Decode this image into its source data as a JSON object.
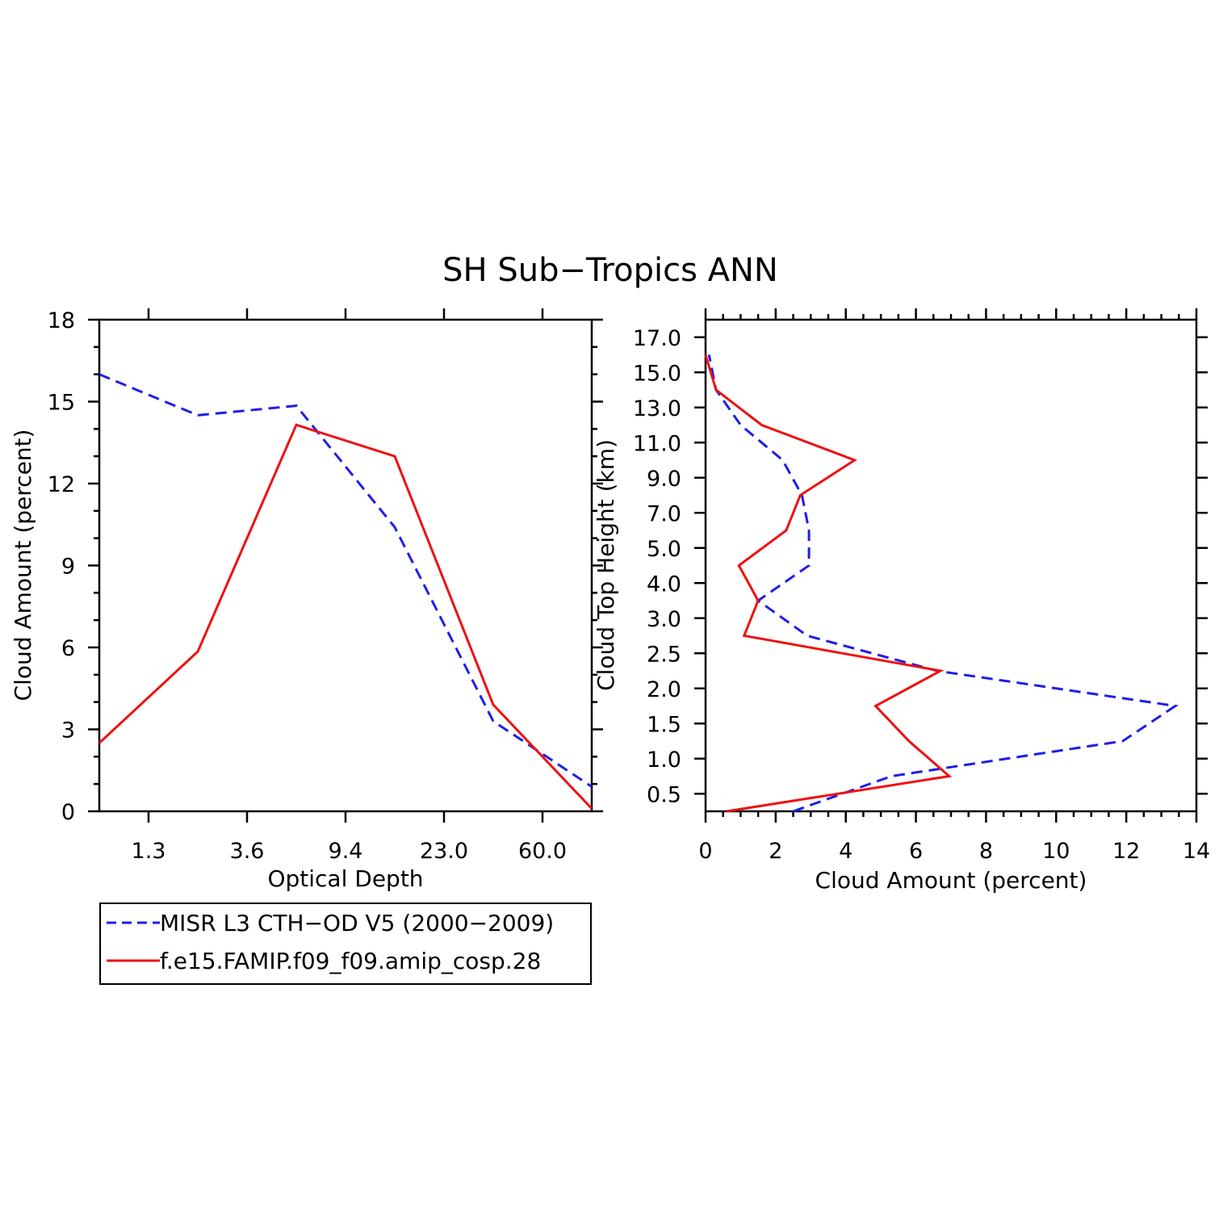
{
  "figure": {
    "title": "SH Sub−Tropics ANN"
  },
  "colors": {
    "misr": "#1f1fe6",
    "model": "#ee1111"
  },
  "legend": {
    "entries": [
      {
        "label": "MISR L3 CTH−OD V5 (2000−2009)",
        "color": "#1f1fe6",
        "style": "dashed"
      },
      {
        "label": "f.e15.FAMIP.f09_f09.amip_cosp.28",
        "color": "#ee1111",
        "style": "solid"
      }
    ]
  },
  "chart_data": [
    {
      "type": "line",
      "xlabel": "Optical Depth",
      "ylabel": "Cloud Amount (percent)",
      "xtick_labels": [
        "1.3",
        "3.6",
        "9.4",
        "23.0",
        "60.0"
      ],
      "xtick_positions": [
        0.5,
        1.5,
        2.5,
        3.5,
        4.5
      ],
      "x": [
        0,
        1,
        2,
        3,
        4,
        5
      ],
      "xlim": [
        0,
        5
      ],
      "ylim": [
        0,
        18
      ],
      "yticks": [
        0,
        3,
        6,
        9,
        12,
        15,
        18
      ],
      "series": [
        {
          "name": "MISR L3 CTH−OD V5 (2000−2009)",
          "style": "dashed",
          "values": [
            16.0,
            14.5,
            14.85,
            10.4,
            3.3,
            0.9
          ]
        },
        {
          "name": "f.e15.FAMIP.f09_f09.amip_cosp.28",
          "style": "solid",
          "values": [
            2.5,
            5.85,
            14.15,
            13.0,
            3.9,
            0.1
          ]
        }
      ]
    },
    {
      "type": "line",
      "xlabel": "Cloud Amount (percent)",
      "ylabel": "Cloud Top Height (km)",
      "xlim": [
        0,
        14
      ],
      "xticks": [
        0,
        2,
        4,
        6,
        8,
        10,
        12,
        14
      ],
      "ytick_labels": [
        "0.5",
        "1.0",
        "1.5",
        "2.0",
        "2.5",
        "3.0",
        "4.0",
        "5.0",
        "7.0",
        "9.0",
        "11.0",
        "13.0",
        "15.0",
        "17.0"
      ],
      "ytick_positions": [
        0.5,
        1.5,
        2.5,
        3.5,
        4.5,
        5.5,
        6.5,
        7.5,
        8.5,
        9.5,
        10.5,
        11.5,
        12.5,
        13.5
      ],
      "y": [
        0,
        1,
        2,
        3,
        4,
        5,
        6,
        7,
        8,
        9,
        10,
        11,
        12,
        13,
        14
      ],
      "ylim": [
        0,
        14
      ],
      "series": [
        {
          "name": "MISR L3 CTH−OD V5 (2000−2009)",
          "style": "dashed",
          "values": [
            2.5,
            5.3,
            11.9,
            13.4,
            6.6,
            2.9,
            1.5,
            2.95,
            2.95,
            2.75,
            2.2,
            1.0,
            0.3,
            0.1
          ]
        },
        {
          "name": "f.e15.FAMIP.f09_f09.amip_cosp.28",
          "style": "solid",
          "values": [
            0.6,
            6.95,
            5.8,
            4.85,
            6.7,
            1.1,
            1.5,
            0.95,
            2.3,
            2.7,
            4.25,
            1.6,
            0.3,
            0.0
          ]
        }
      ]
    }
  ]
}
